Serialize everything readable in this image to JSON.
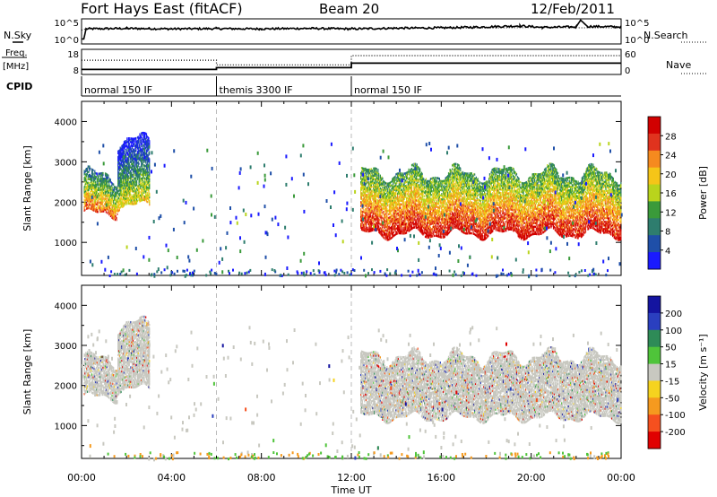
{
  "header": {
    "title": "Fort Hays East (fitACF)",
    "beam": "Beam 20",
    "date": "12/Feb/2011"
  },
  "strip_labels": {
    "nsky": "N.Sky",
    "nsearch": "N.Search",
    "freq_line1": "Freq.",
    "freq_line2": "[MHz]",
    "nave": "Nave",
    "cpid": "CPID"
  },
  "chart_data": [
    {
      "type": "line",
      "name": "noise-panel",
      "x_unit": "hours UT",
      "xlim": [
        0,
        24
      ],
      "left_ticks": [
        "10^5",
        "10^0"
      ],
      "right_ticks": [
        "10^5",
        "10^0"
      ],
      "series": [
        {
          "name": "N.Sky",
          "style": "solid",
          "x": [
            0,
            0.1,
            0.2,
            2,
            4,
            6,
            8,
            10,
            12,
            14,
            16,
            18,
            19.5,
            20.5,
            22,
            22.2,
            22.5,
            24
          ],
          "y": [
            0.2,
            0.2,
            0.6,
            0.62,
            0.6,
            0.61,
            0.6,
            0.62,
            0.6,
            0.63,
            0.64,
            0.68,
            0.72,
            0.66,
            0.68,
            0.95,
            0.7,
            0.68
          ]
        },
        {
          "name": "N.Search",
          "style": "dotted",
          "x": [
            0,
            0.2,
            4,
            8,
            12,
            16,
            20,
            24
          ],
          "y": [
            0.55,
            0.6,
            0.6,
            0.62,
            0.6,
            0.63,
            0.65,
            0.64
          ]
        }
      ]
    },
    {
      "type": "line",
      "name": "freq-panel",
      "x_unit": "hours UT",
      "xlim": [
        0,
        24
      ],
      "left_ticks": [
        "18",
        "8"
      ],
      "right_ticks": [
        "60",
        "0"
      ],
      "series": [
        {
          "name": "Freq",
          "style": "solid",
          "x": [
            0,
            6,
            6,
            12,
            12,
            24
          ],
          "y": [
            10,
            10,
            10.7,
            10.7,
            12.5,
            12.5
          ]
        },
        {
          "name": "Nave",
          "style": "dotted",
          "x": [
            0,
            6,
            6,
            12,
            12,
            24
          ],
          "y": [
            34,
            34,
            23,
            23,
            45,
            45
          ]
        }
      ]
    },
    {
      "type": "table",
      "name": "cpid-strip",
      "segments": [
        {
          "start": 0,
          "end": 6,
          "label": "normal 150 IF"
        },
        {
          "start": 6,
          "end": 12,
          "label": "themis 3300 IF"
        },
        {
          "start": 12,
          "end": 24,
          "label": "normal 150 IF"
        }
      ]
    },
    {
      "type": "heatmap",
      "name": "power",
      "x_unit": "hours UT",
      "xlim": [
        0,
        24
      ],
      "ylabel": "Slant Range [km]",
      "ylim": [
        180,
        4500
      ],
      "yticks": [
        1000,
        2000,
        3000,
        4000
      ],
      "colorbar_label": "Power [dB]",
      "colorbar_ticks": [
        "4",
        "8",
        "12",
        "16",
        "20",
        "24",
        "28"
      ],
      "colorbar_range": [
        0,
        30
      ],
      "colors": [
        "#1a1aff",
        "#1f4fa8",
        "#2e7d6e",
        "#3a9a3a",
        "#b9d41c",
        "#f5c518",
        "#f58a1f",
        "#e0331e",
        "#d10000"
      ],
      "regions": [
        {
          "t0": 0.1,
          "t1": 1.6,
          "r0": 1700,
          "r1": 2650,
          "level": 14
        },
        {
          "t0": 1.6,
          "t1": 3.0,
          "r0": 1900,
          "r1": 3500,
          "level": 8
        },
        {
          "t0": 12.4,
          "t1": 24,
          "r0": 1200,
          "r1": 2700,
          "level": 18
        }
      ],
      "dividers": [
        6,
        12
      ]
    },
    {
      "type": "heatmap",
      "name": "velocity",
      "x_unit": "hours UT",
      "xlim": [
        0,
        24
      ],
      "xlabel": "Time UT",
      "xticks": [
        "00:00",
        "04:00",
        "08:00",
        "12:00",
        "16:00",
        "20:00",
        "00:00"
      ],
      "ylabel": "Slant Range [km]",
      "ylim": [
        180,
        4500
      ],
      "yticks": [
        1000,
        2000,
        3000,
        4000
      ],
      "colorbar_label": "Velocity [m s⁻¹]",
      "colorbar_ticks": [
        "200",
        "100",
        "50",
        "15",
        "-15",
        "-50",
        "-100",
        "-200"
      ],
      "colorbar_range": [
        -250,
        250
      ],
      "colors": [
        "#e00000",
        "#f5501f",
        "#f59a1f",
        "#f5d31f",
        "#c8c8c0",
        "#4fc43a",
        "#2e8b57",
        "#2a3fbf",
        "#1414a0"
      ],
      "regions": [
        {
          "t0": 0.1,
          "t1": 1.6,
          "r0": 1700,
          "r1": 2650,
          "level": 0
        },
        {
          "t0": 1.6,
          "t1": 3.0,
          "r0": 1900,
          "r1": 3500,
          "level": 0
        },
        {
          "t0": 12.4,
          "t1": 24,
          "r0": 1200,
          "r1": 2700,
          "level": 0
        }
      ],
      "dividers": [
        6,
        12
      ]
    }
  ]
}
